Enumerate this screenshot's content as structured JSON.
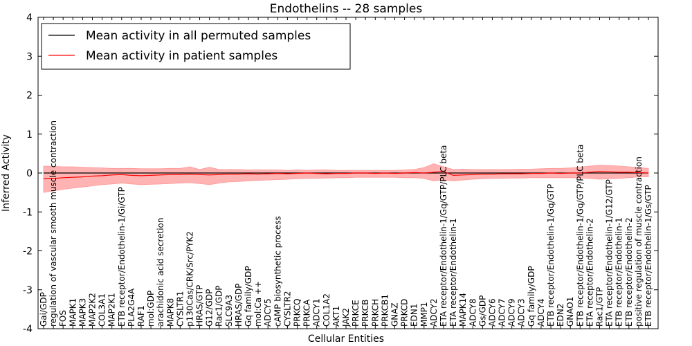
{
  "chart_data": {
    "type": "line",
    "title": "Endothelins -- 28 samples",
    "xlabel": "Cellular Entities",
    "ylabel": "Inferred Activity",
    "ylim": [
      -4,
      4
    ],
    "yticks": [
      -4,
      -3,
      -2,
      -1,
      0,
      1,
      2,
      3,
      4
    ],
    "grid": false,
    "legend_position": "top-left",
    "colors": {
      "permuted": "#000000",
      "patient": "#ff0000",
      "band": "#ff9999"
    },
    "categories": [
      "Gai/GDP",
      "regulation of vascular smooth muscle contraction",
      "FOS",
      "MAPK1",
      "MAPK3",
      "MAP2K2",
      "COL3A1",
      "MAP2K1",
      "ETB receptor/Endothelin-1/Gi/GTP",
      "PLA2G4A",
      "RAF1",
      "mol:GDP",
      "arachidonic acid secretion",
      "MAPK8",
      "CYSLTR1",
      "p130Cas/CRK/Src/PYK2",
      "HRAS/GTP",
      "G12/GDP",
      "Rac1/GDP",
      "SLC9A3",
      "HRAS/GDP",
      "Gq family/GDP",
      "mol:Ca ++",
      "ADCY5",
      "cAMP biosynthetic process",
      "CYSLTR2",
      "PRKCQ",
      "PRKCA",
      "ADCY1",
      "COL1A2",
      "AKT1",
      "JAK2",
      "PRKCE",
      "PRKCB",
      "PRKCH",
      "PRKCB1",
      "GNAZ",
      "PRKCD",
      "EDN1",
      "MMP1",
      "ADCY2",
      "ETA receptor/Endothelin-1/Gq/GTP/PLC beta",
      "ETA receptor/Endothelin-1",
      "MAPK14",
      "ADCY8",
      "Gs/GDP",
      "ADCY6",
      "ADCY7",
      "ADCY9",
      "ADCY3",
      "Gq family/GDP",
      "ADCY4",
      "ETB receptor/Endothelin-1/Gq/GTP",
      "EDN2",
      "GNAO1",
      "ETB receptor/Endothelin-1/Gq/GTP/PLC beta",
      "ETA receptor/Endothelin-2",
      "Rac1/GTP",
      "ETA receptor/Endothelin-1/G12/GTP",
      "ETB receptor/Endothelin-1",
      "ETB receptor/Endothelin-2",
      "positive regulation of muscle contraction",
      "ETB receptor/Endothelin-1/Gs/GTP"
    ],
    "series": [
      {
        "name": "Mean activity in all permuted samples",
        "color": "#000000",
        "values": [
          0,
          0,
          0,
          0,
          0,
          0,
          0,
          0,
          0,
          0,
          0,
          0,
          0,
          0,
          0,
          0,
          0,
          0,
          0,
          0,
          0,
          0,
          0,
          0,
          0,
          0,
          0,
          0,
          0,
          0,
          0,
          0,
          0,
          0,
          0,
          0,
          0,
          0,
          0,
          0,
          0,
          0,
          0,
          0,
          0,
          0,
          0,
          0,
          0,
          0,
          0,
          0,
          0,
          0,
          0,
          0,
          0,
          0,
          0,
          0,
          0,
          0,
          0
        ]
      },
      {
        "name": "Mean activity in patient samples",
        "color": "#ff0000",
        "values": [
          -0.15,
          -0.14,
          -0.12,
          -0.11,
          -0.1,
          -0.08,
          -0.07,
          -0.05,
          -0.04,
          -0.06,
          -0.07,
          -0.06,
          -0.05,
          -0.04,
          -0.04,
          -0.03,
          -0.04,
          -0.05,
          -0.04,
          -0.03,
          -0.03,
          -0.02,
          -0.03,
          -0.02,
          -0.01,
          -0.02,
          -0.01,
          0,
          -0.01,
          -0.02,
          -0.01,
          -0.01,
          0,
          0,
          -0.01,
          0,
          -0.01,
          0,
          0.01,
          0,
          0.02,
          0.04,
          -0.06,
          -0.05,
          -0.04,
          -0.03,
          -0.03,
          -0.02,
          -0.02,
          -0.02,
          -0.01,
          -0.01,
          0,
          -0.01,
          0,
          0,
          0.02,
          0.04,
          0.03,
          0.02,
          0.02,
          0.01,
          0
        ]
      }
    ],
    "patient_band": {
      "upper": [
        0.18,
        0.17,
        0.16,
        0.16,
        0.15,
        0.14,
        0.13,
        0.12,
        0.12,
        0.12,
        0.11,
        0.11,
        0.11,
        0.12,
        0.12,
        0.16,
        0.09,
        0.15,
        0.09,
        0.09,
        0.09,
        0.08,
        0.08,
        0.08,
        0.08,
        0.07,
        0.08,
        0.07,
        0.08,
        0.08,
        0.07,
        0.07,
        0.07,
        0.07,
        0.07,
        0.07,
        0.07,
        0.08,
        0.09,
        0.14,
        0.24,
        0.16,
        0.09,
        0.1,
        0.09,
        0.09,
        0.09,
        0.09,
        0.09,
        0.1,
        0.1,
        0.11,
        0.12,
        0.12,
        0.13,
        0.15,
        0.18,
        0.2,
        0.19,
        0.18,
        0.16,
        0.14,
        0.12
      ],
      "lower": [
        -0.5,
        -0.46,
        -0.42,
        -0.39,
        -0.36,
        -0.33,
        -0.3,
        -0.28,
        -0.26,
        -0.28,
        -0.3,
        -0.29,
        -0.28,
        -0.27,
        -0.26,
        -0.25,
        -0.27,
        -0.3,
        -0.26,
        -0.23,
        -0.22,
        -0.2,
        -0.19,
        -0.18,
        -0.17,
        -0.16,
        -0.15,
        -0.14,
        -0.14,
        -0.13,
        -0.12,
        -0.12,
        -0.11,
        -0.11,
        -0.11,
        -0.11,
        -0.11,
        -0.12,
        -0.12,
        -0.14,
        -0.2,
        -0.18,
        -0.2,
        -0.18,
        -0.16,
        -0.15,
        -0.14,
        -0.14,
        -0.13,
        -0.13,
        -0.12,
        -0.12,
        -0.12,
        -0.12,
        -0.12,
        -0.13,
        -0.14,
        -0.16,
        -0.15,
        -0.14,
        -0.12,
        -0.1,
        -0.1
      ]
    }
  }
}
